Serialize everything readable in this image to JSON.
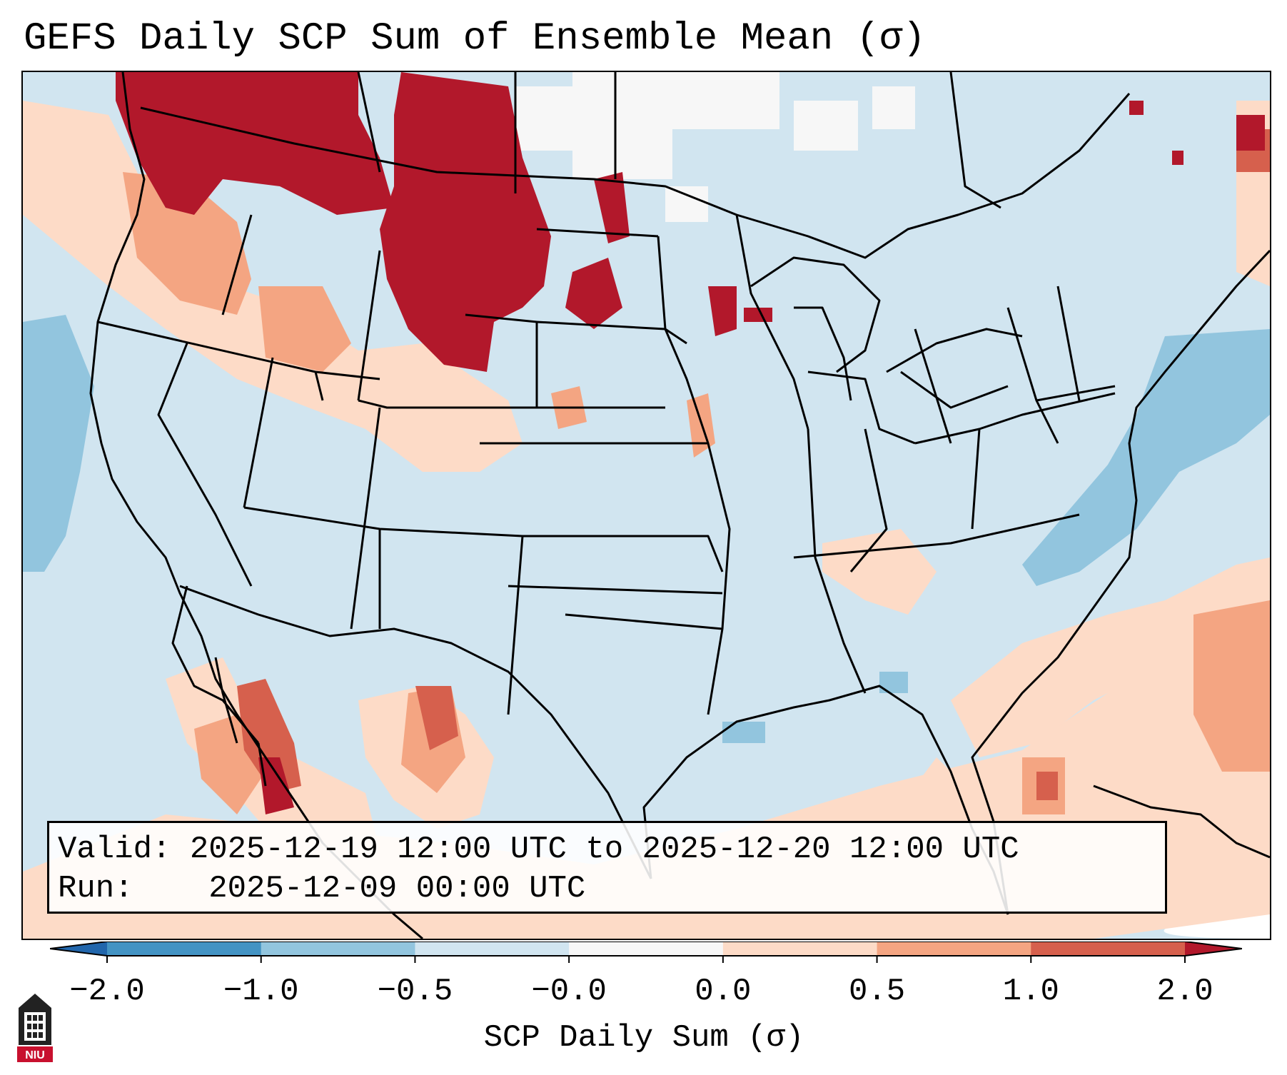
{
  "title": "GEFS Daily SCP Sum of Ensemble Mean (σ)",
  "info": {
    "valid_label": "Valid:",
    "valid_value": "2025-12-19 12:00 UTC to 2025-12-20 12:00 UTC",
    "run_label": "Run:",
    "run_value": "2025-12-09 00:00 UTC"
  },
  "colorbar": {
    "label": "SCP Daily Sum (σ)",
    "ticks": [
      "−2.0",
      "−1.0",
      "−0.5",
      "−0.0",
      "0.0",
      "0.5",
      "1.0",
      "2.0"
    ],
    "bin_colors": [
      "#4393c3",
      "#92c5de",
      "#d1e5f0",
      "#f7f7f7",
      "#fddbc7",
      "#f4a582",
      "#d6604d"
    ],
    "under_color": "#2166ac",
    "over_color": "#b2182b"
  },
  "map": {
    "background_color": "#d1e5f0",
    "levels": {
      "strong_positive": "#b2182b",
      "positive": "#d6604d",
      "moderate_positive": "#f4a582",
      "weak_positive": "#fddbc7",
      "neutral": "#f7f7f7",
      "weak_negative": "#92c5de"
    }
  },
  "logo": {
    "text": "NIU",
    "icon": "niu-tower-logo-icon"
  }
}
